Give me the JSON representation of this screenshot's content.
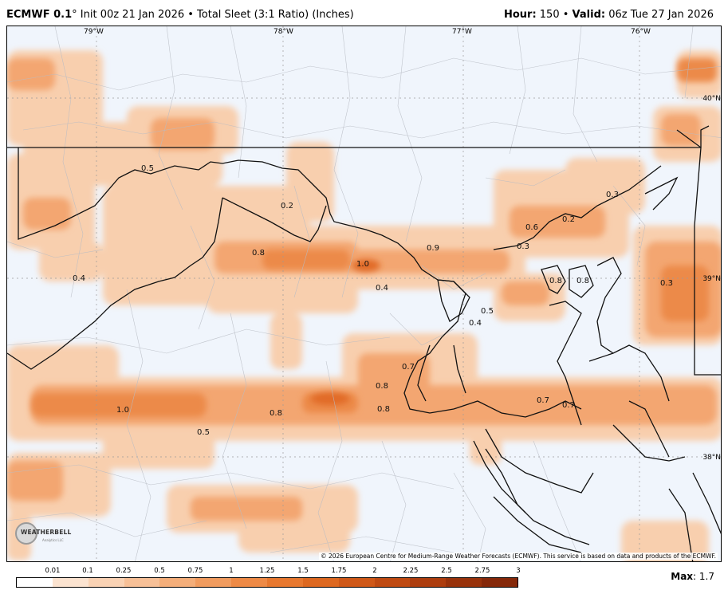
{
  "header": {
    "model": "ECMWF 0.1",
    "degree": "°",
    "run_info": " Init 00z 21 Jan 2026 • Total Sleet (3:1 Ratio) (Inches)",
    "hour_label": "Hour:",
    "hour_value": " 150 • ",
    "valid_label": "Valid:",
    "valid_value": " 06z Tue 27 Jan 2026"
  },
  "map": {
    "lon_labels": [
      "79°W",
      "78°W",
      "77°W",
      "76°W"
    ],
    "lat_labels": [
      "40°N",
      "39°N",
      "38°N"
    ],
    "value_labels": [
      "0.5",
      "0.2",
      "0.8",
      "1.0",
      "0.4",
      "0.9",
      "0.6",
      "0.2",
      "0.3",
      "0.3",
      "0.4",
      "0.8",
      "0.8",
      "0.3",
      "0.5",
      "0.4",
      "0.7",
      "0.8",
      "0.8",
      "0.7",
      "0.7",
      "1.0",
      "0.8",
      "0.5"
    ],
    "copyright": "© 2026 European Centre for Medium-Range Weather Forecasts (ECMWF). This service is based on data and products of the ECMWF.",
    "logo_text": "WEATHERBELL",
    "logo_sub": "Analytics LLC"
  },
  "legend": {
    "ticks": [
      "0.01",
      "0.1",
      "0.25",
      "0.5",
      "0.75",
      "1",
      "1.25",
      "1.5",
      "1.75",
      "2",
      "2.25",
      "2.5",
      "2.75",
      "3"
    ],
    "colors": [
      "#fbe3d0",
      "#f9d2b4",
      "#f7c097",
      "#f4ae7a",
      "#f19c5f",
      "#ee8a46",
      "#e7782f",
      "#dd6820",
      "#cf5818",
      "#bf4a12",
      "#ad3d0e",
      "#98320b",
      "#852809"
    ],
    "max_label": "Max",
    "max_value": ": 1.7"
  }
}
